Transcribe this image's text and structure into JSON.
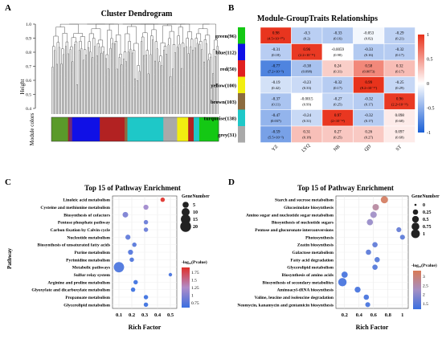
{
  "panel_labels": [
    "A",
    "B",
    "C",
    "D"
  ],
  "chart_data": [
    {
      "id": "A",
      "type": "dendrogram",
      "title": "Cluster Dendrogram",
      "ylabel": "Height",
      "yticks": [
        "1.0",
        "0.9",
        "0.8",
        "0.7",
        "0.6",
        "0.5",
        "0.4"
      ],
      "ylim": [
        0.4,
        1.0
      ],
      "color_bar_label": "Module colors",
      "module_colors": [
        {
          "color": "#5a9a2a",
          "size": 12
        },
        {
          "color": "#9a2a2a",
          "size": 1
        },
        {
          "color": "#6d2a7a",
          "size": 2
        },
        {
          "color": "#1010e6",
          "size": 20
        },
        {
          "color": "#b22222",
          "size": 18
        },
        {
          "color": "#8c6b3f",
          "size": 2
        },
        {
          "color": "#1ec8c8",
          "size": 26
        },
        {
          "color": "#a9a9a9",
          "size": 10
        },
        {
          "color": "#f2ee10",
          "size": 8
        },
        {
          "color": "#b22222",
          "size": 4
        },
        {
          "color": "#1ec8c8",
          "size": 4
        },
        {
          "color": "#14c814",
          "size": 14
        }
      ]
    },
    {
      "id": "B",
      "type": "heatmap",
      "title": "Module-GroupTraits Relationships",
      "columns": [
        "YZ",
        "LYQ",
        "NB",
        "QD",
        "ST"
      ],
      "rows": [
        {
          "label": "green(96)",
          "color": "#14c814",
          "cells": [
            [
              "0.98",
              "(4.5×10⁻¹⁰)",
              0.98
            ],
            [
              "-0.3",
              "(0.2)",
              -0.3
            ],
            [
              "-0.33",
              "(0.16)",
              -0.33
            ],
            [
              "-0.053",
              "(0.82)",
              -0.053
            ],
            [
              "-0.29",
              "(0.21)",
              -0.29
            ]
          ]
        },
        {
          "label": "blue(112)",
          "color": "#1010e6",
          "cells": [
            [
              "-0.31",
              "(0.18)",
              -0.31
            ],
            [
              "0.96",
              "(2.2×10⁻¹¹)",
              0.96
            ],
            [
              "-0.0059",
              "(0.98)",
              -0.0059
            ],
            [
              "-0.33",
              "(0.16)",
              -0.33
            ],
            [
              "-0.32",
              "(0.17)",
              -0.32
            ]
          ]
        },
        {
          "label": "red(50)",
          "color": "#e02020",
          "cells": [
            [
              "-0.77",
              "(7.2×10⁻⁵)",
              -0.77
            ],
            [
              "-0.38",
              "(0.098)",
              -0.38
            ],
            [
              "0.24",
              "(0.31)",
              0.24
            ],
            [
              "0.58",
              "(0.0073)",
              0.58
            ],
            [
              "0.32",
              "(0.17)",
              0.32
            ]
          ]
        },
        {
          "label": "yellow(100)",
          "color": "#f2ee10",
          "cells": [
            [
              "-0.19",
              "(0.42)",
              -0.19
            ],
            [
              "-0.23",
              "(0.33)",
              -0.23
            ],
            [
              "-0.32",
              "(0.17)",
              -0.32
            ],
            [
              "0.99",
              "(8.2×10⁻¹⁷)",
              0.99
            ],
            [
              "-0.25",
              "(0.29)",
              -0.25
            ]
          ]
        },
        {
          "label": "brown(103)",
          "color": "#8c6b3f",
          "cells": [
            [
              "-0.37",
              "(0.11)",
              -0.37
            ],
            [
              "-0.0015",
              "(0.99)",
              -0.0015
            ],
            [
              "-0.27",
              "(0.25)",
              -0.27
            ],
            [
              "-0.32",
              "(0.17)",
              -0.32
            ],
            [
              "0.96",
              "(2.2×10⁻¹¹)",
              0.96
            ]
          ]
        },
        {
          "label": "turquoise(138)",
          "color": "#1ec8c8",
          "cells": [
            [
              "-0.47",
              "(0.037)",
              -0.47
            ],
            [
              "-0.24",
              "(0.31)",
              -0.24
            ],
            [
              "0.97",
              "(2×10⁻¹²)",
              0.97
            ],
            [
              "-0.32",
              "(0.17)",
              -0.32
            ],
            [
              "0.098",
              "(0.68)",
              0.098
            ]
          ]
        },
        {
          "label": "grey(31)",
          "color": "#a9a9a9",
          "cells": [
            [
              "-0.59",
              "(5.5×10⁻³)",
              -0.59
            ],
            [
              "0.31",
              "(0.18)",
              0.31
            ],
            [
              "0.27",
              "(0.25)",
              0.27
            ],
            [
              "0.26",
              "(0.27)",
              0.26
            ],
            [
              "0.097",
              "(0.68)",
              0.097
            ]
          ]
        }
      ],
      "scale_ticks": [
        "1",
        "0.5",
        "0",
        "-0.5",
        "-1"
      ],
      "range": [
        -1,
        1
      ]
    },
    {
      "id": "C",
      "type": "scatter",
      "title": "Top 15 of Pathway Enrichment",
      "xlabel": "Rich Factor",
      "ylabel": "Pathway",
      "xticks": [
        "0.1",
        "0.2",
        "0.3",
        "0.4",
        "0.5"
      ],
      "xlim": [
        0.05,
        0.55
      ],
      "categories": [
        "Linoleic acid metabolism",
        "Cysteine and methionine metabolism",
        "Biosynthesis of cofactors",
        "Pentose phosphate pathway",
        "Carbon fixation by Calvin cycle",
        "Nucleotide metabolism",
        "Biosynthesis of unsaturated fatty acids",
        "Purine metabolism",
        "Pyrimidine metabolism",
        "Metabolic pathways",
        "Sulfur relay system",
        "Arginine and proline metabolism",
        "Glyoxylate and dicarboxylate metabolism",
        "Propanoate metabolism",
        "Glycerolipid metabolism"
      ],
      "points": [
        {
          "pathway": "Linoleic acid metabolism",
          "x": 0.44,
          "count": 2,
          "p": 1.9
        },
        {
          "pathway": "Cysteine and methionine metabolism",
          "x": 0.31,
          "count": 3,
          "p": 1.15
        },
        {
          "pathway": "Biosynthesis of cofactors",
          "x": 0.15,
          "count": 4,
          "p": 0.95
        },
        {
          "pathway": "Pentose phosphate pathway",
          "x": 0.31,
          "count": 2,
          "p": 0.85
        },
        {
          "pathway": "Carbon fixation by Calvin cycle",
          "x": 0.31,
          "count": 2,
          "p": 0.85
        },
        {
          "pathway": "Nucleotide metabolism",
          "x": 0.17,
          "count": 3,
          "p": 0.8
        },
        {
          "pathway": "Biosynthesis of unsaturated fatty acids",
          "x": 0.22,
          "count": 2,
          "p": 0.75
        },
        {
          "pathway": "Purine metabolism",
          "x": 0.19,
          "count": 3,
          "p": 0.72
        },
        {
          "pathway": "Pyrimidine metabolism",
          "x": 0.2,
          "count": 2,
          "p": 0.7
        },
        {
          "pathway": "Metabolic pathways",
          "x": 0.1,
          "count": 18,
          "p": 0.68
        },
        {
          "pathway": "Sulfur relay system",
          "x": 0.5,
          "count": 1,
          "p": 0.65
        },
        {
          "pathway": "Arginine and proline metabolism",
          "x": 0.23,
          "count": 2,
          "p": 0.6
        },
        {
          "pathway": "Glyoxylate and dicarboxylate metabolism",
          "x": 0.21,
          "count": 2,
          "p": 0.6
        },
        {
          "pathway": "Propanoate metabolism",
          "x": 0.31,
          "count": 2,
          "p": 0.55
        },
        {
          "pathway": "Glycerolipid metabolism",
          "x": 0.31,
          "count": 2,
          "p": 0.55
        }
      ],
      "size_legend_title": "GeneNumber",
      "size_legend": [
        5,
        10,
        15,
        20
      ],
      "color_legend_title": "-log₁₀(Pvalue)",
      "color_legend_ticks": [
        "1.75",
        "1.5",
        "1.25",
        "1",
        "0.75"
      ],
      "color_range": [
        0.6,
        1.9
      ]
    },
    {
      "id": "D",
      "type": "scatter",
      "title": "Top 15 of Pathway Enrichment",
      "xlabel": "Rich Factor",
      "ylabel": "",
      "xticks": [
        "0.2",
        "0.4",
        "0.6",
        "0.8",
        "1"
      ],
      "xlim": [
        0.08,
        1.08
      ],
      "categories": [
        "Starch and sucrose metabolism",
        "Glucosinolate biosynthesis",
        "Amino sugar and nucleotide sugar metabolism",
        "Biosynthesis of nucleotide sugars",
        "Pentose and glucuronate interconversions",
        "Photosynthesis",
        "Zeatin biosynthesis",
        "Galactose metabolism",
        "Fatty acid degradation",
        "Glycerolipid metabolism",
        "Biosynthesis of amino acids",
        "Biosynthesis of secondary metabolites",
        "Aminoacyl-tRNA biosynthesis",
        "Valine, leucine and isoleucine degradation",
        "Neomycin, kanamycin and gentamicin biosynthesis"
      ],
      "points": [
        {
          "pathway": "Starch and sucrose metabolism",
          "x": 0.75,
          "count": 0.6,
          "p": 3.2
        },
        {
          "pathway": "Glucosinolate biosynthesis",
          "x": 0.63,
          "count": 0.45,
          "p": 2.6
        },
        {
          "pathway": "Amino sugar and nucleotide sugar metabolism",
          "x": 0.6,
          "count": 0.45,
          "p": 2.2
        },
        {
          "pathway": "Biosynthesis of nucleotide sugars",
          "x": 0.55,
          "count": 0.4,
          "p": 2.1
        },
        {
          "pathway": "Pentose and glucuronate interconversions",
          "x": 0.95,
          "count": 0.2,
          "p": 1.6
        },
        {
          "pathway": "Photosynthesis",
          "x": 1.0,
          "count": 0.2,
          "p": 1.5
        },
        {
          "pathway": "Zeatin biosynthesis",
          "x": 0.62,
          "count": 0.25,
          "p": 1.55
        },
        {
          "pathway": "Galactose metabolism",
          "x": 0.53,
          "count": 0.25,
          "p": 1.5
        },
        {
          "pathway": "Fatty acid degradation",
          "x": 0.65,
          "count": 0.25,
          "p": 1.45
        },
        {
          "pathway": "Glycerolipid metabolism",
          "x": 0.62,
          "count": 0.25,
          "p": 1.45
        },
        {
          "pathway": "Biosynthesis of amino acids",
          "x": 0.2,
          "count": 0.4,
          "p": 1.3
        },
        {
          "pathway": "Biosynthesis of secondary metabolites",
          "x": 0.17,
          "count": 0.9,
          "p": 1.3
        },
        {
          "pathway": "Aminoacyl-tRNA biosynthesis",
          "x": 0.38,
          "count": 0.35,
          "p": 1.3
        },
        {
          "pathway": "Valine, leucine and isoleucine degradation",
          "x": 0.5,
          "count": 0.25,
          "p": 1.3
        },
        {
          "pathway": "Neomycin, kanamycin and gentamicin biosynthesis",
          "x": 0.52,
          "count": 0.2,
          "p": 1.3
        }
      ],
      "size_legend_title": "GeneNumber",
      "size_legend": [
        "0",
        "0.25",
        "0.5",
        "0.75",
        "1"
      ],
      "color_legend_title": "-log₁₀(Pvalue)",
      "color_legend_ticks": [
        "3",
        "2.5",
        "2",
        "1.5"
      ],
      "color_range": [
        1.2,
        3.3
      ]
    }
  ]
}
